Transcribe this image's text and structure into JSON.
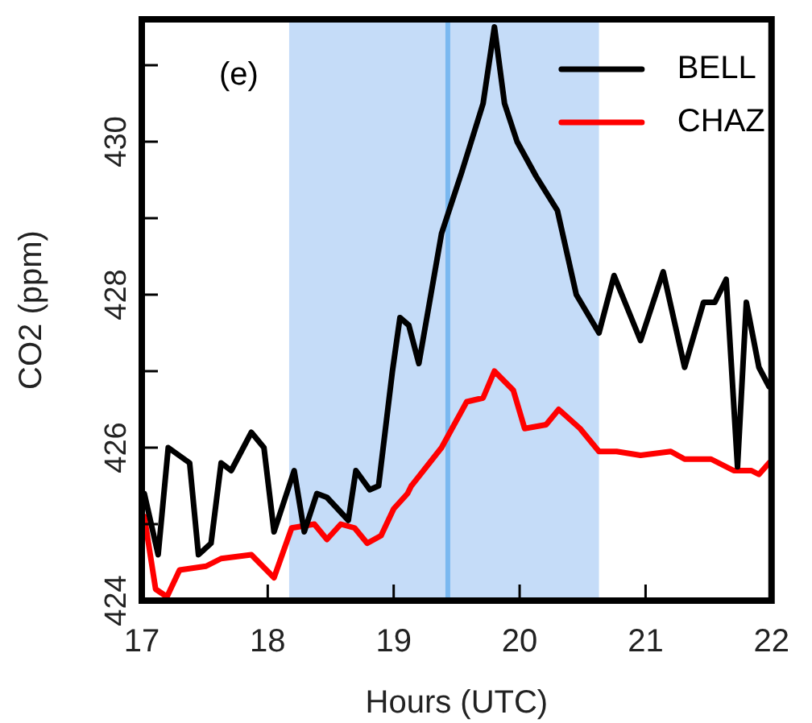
{
  "chart_data": {
    "type": "line",
    "xlabel": "Hours (UTC)",
    "ylabel": "CO2 (ppm)",
    "annotations": [
      "(e)"
    ],
    "xlim": [
      17,
      22
    ],
    "xticks": [
      17,
      18,
      19,
      20,
      21,
      22
    ],
    "ylim": [
      424,
      431.6
    ],
    "yticks": [
      424,
      {
        "value": 425,
        "label": null
      },
      426,
      {
        "value": 427,
        "label": null
      },
      428,
      {
        "value": 429,
        "label": null
      },
      430,
      {
        "value": 431,
        "label": null
      }
    ],
    "grid": false,
    "legend": "top right",
    "marker": "none",
    "line_style": "solid",
    "bands": [
      {
        "axis": "x",
        "from": 18.17,
        "to": 20.63,
        "color": "#c5dcf8"
      }
    ],
    "ref_lines": [
      {
        "axis": "x",
        "value": 19.43,
        "color": "#7ab8f0"
      }
    ],
    "series": [
      {
        "name": "BELL",
        "color": "#000000",
        "x": [
          17.02,
          17.13,
          17.21,
          17.38,
          17.45,
          17.55,
          17.63,
          17.71,
          17.87,
          17.97,
          18.05,
          18.21,
          18.29,
          18.39,
          18.47,
          18.64,
          18.7,
          18.81,
          18.88,
          18.99,
          19.05,
          19.12,
          19.2,
          19.38,
          19.54,
          19.71,
          19.8,
          19.88,
          19.98,
          20.13,
          20.3,
          20.45,
          20.63,
          20.75,
          20.96,
          21.14,
          21.31,
          21.46,
          21.55,
          21.64,
          21.73,
          21.8,
          21.9,
          21.98
        ],
        "values": [
          425.4,
          424.6,
          426,
          425.8,
          424.6,
          424.75,
          425.8,
          425.7,
          426.2,
          426,
          424.9,
          425.7,
          424.9,
          425.4,
          425.35,
          425.05,
          425.7,
          425.45,
          425.5,
          427,
          427.7,
          427.6,
          427.1,
          428.8,
          429.6,
          430.5,
          431.5,
          430.5,
          430,
          429.55,
          429.1,
          428,
          427.5,
          428.25,
          427.4,
          428.3,
          427.05,
          427.9,
          427.9,
          428.2,
          425.75,
          427.9,
          427.05,
          426.8
        ]
      },
      {
        "name": "CHAZ",
        "color": "#ff0000",
        "x": [
          17.02,
          17.11,
          17.2,
          17.3,
          17.51,
          17.63,
          17.87,
          18.05,
          18.19,
          18.37,
          18.47,
          18.58,
          18.69,
          18.79,
          18.9,
          19,
          19.11,
          19.14,
          19.38,
          19.58,
          19.71,
          19.8,
          19.95,
          20.04,
          20.21,
          20.31,
          20.48,
          20.63,
          20.77,
          20.96,
          21.2,
          21.31,
          21.52,
          21.7,
          21.84,
          21.9,
          21.98
        ],
        "values": [
          425.1,
          424.15,
          424.05,
          424.4,
          424.45,
          424.55,
          424.6,
          424.3,
          424.95,
          425,
          424.8,
          425,
          424.95,
          424.75,
          424.85,
          425.2,
          425.4,
          425.5,
          426,
          426.6,
          426.65,
          427,
          426.75,
          426.25,
          426.3,
          426.5,
          426.25,
          425.95,
          425.95,
          425.9,
          425.95,
          425.85,
          425.85,
          425.7,
          425.7,
          425.65,
          425.8
        ]
      }
    ]
  }
}
